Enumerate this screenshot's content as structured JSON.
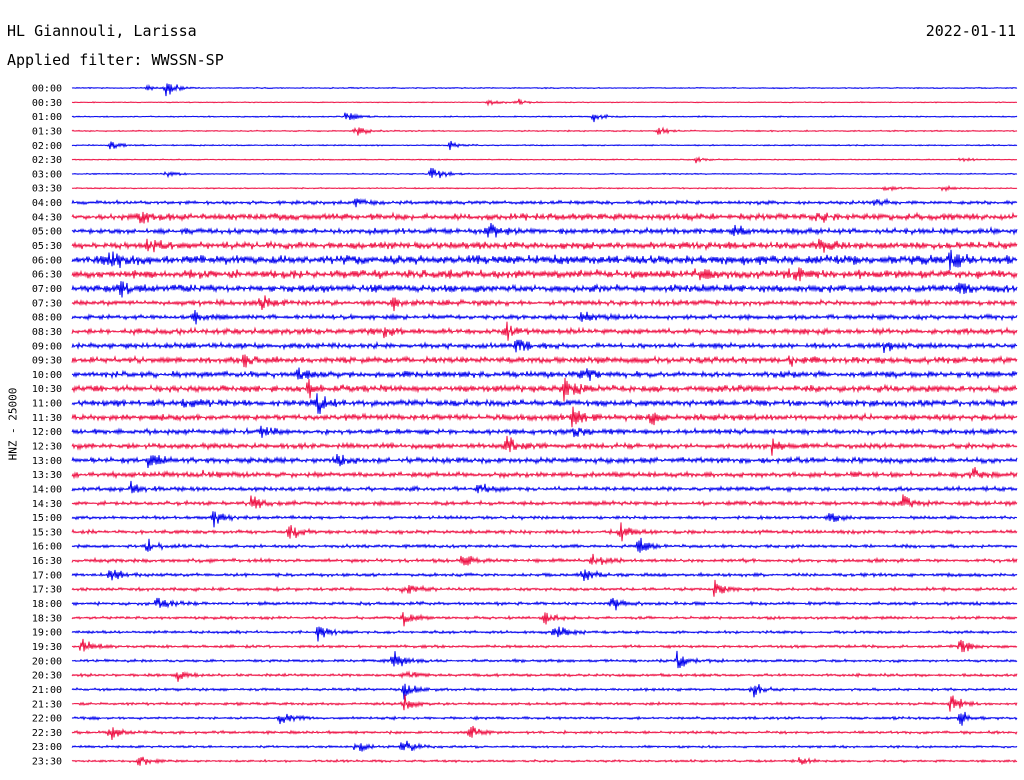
{
  "header": {
    "station": "HL Giannouli, Larissa",
    "filter": "Applied filter: WWSSN-SP",
    "date": "2022-01-11"
  },
  "chart_data": {
    "type": "helicorder",
    "station": "HL Giannouli, Larissa",
    "date": "2022-01-11",
    "filter": "WWSSN-SP",
    "ylabel": "HNZ - 25000",
    "colors": [
      "#0000ee",
      "#ee1144"
    ],
    "trace_minutes": 30,
    "traces": [
      {
        "time": "00:00",
        "noise": 0.12,
        "events": [
          0.4,
          0.08,
          0.78,
          0.1
        ]
      },
      {
        "time": "00:30",
        "noise": 0.1,
        "events": [
          0.32,
          0.44,
          0.4,
          0.47
        ]
      },
      {
        "time": "01:00",
        "noise": 0.14,
        "events": [
          0.55,
          0.29,
          0.6,
          0.55
        ]
      },
      {
        "time": "01:30",
        "noise": 0.14,
        "events": [
          0.6,
          0.3,
          0.36,
          0.62
        ]
      },
      {
        "time": "02:00",
        "noise": 0.14,
        "events": [
          0.5,
          0.04,
          0.38,
          0.4
        ]
      },
      {
        "time": "02:30",
        "noise": 0.12,
        "events": [
          0.3,
          0.66,
          0.25,
          0.94
        ]
      },
      {
        "time": "03:00",
        "noise": 0.13,
        "events": [
          1.0,
          0.38,
          0.3,
          0.1
        ]
      },
      {
        "time": "03:30",
        "noise": 0.14,
        "events": [
          0.3,
          0.86,
          0.35,
          0.92
        ]
      },
      {
        "time": "04:00",
        "noise": 0.4,
        "events": [
          0.35,
          0.3,
          0.4,
          0.85
        ]
      },
      {
        "time": "04:30",
        "noise": 0.7,
        "events": [
          0.75,
          0.07,
          0.8,
          0.79
        ]
      },
      {
        "time": "05:00",
        "noise": 0.6,
        "events": [
          1.0,
          0.44,
          0.7,
          0.7
        ]
      },
      {
        "time": "05:30",
        "noise": 0.75,
        "events": [
          1.0,
          0.79,
          0.8,
          0.08
        ]
      },
      {
        "time": "06:00",
        "noise": 1.0,
        "events": [
          1.0,
          0.04,
          1.0,
          0.93
        ]
      },
      {
        "time": "06:30",
        "noise": 0.9,
        "events": [
          0.9,
          0.66,
          0.8,
          0.76
        ]
      },
      {
        "time": "07:00",
        "noise": 0.8,
        "events": [
          1.0,
          0.05,
          0.8,
          0.94
        ]
      },
      {
        "time": "07:30",
        "noise": 0.55,
        "events": [
          0.7,
          0.2,
          0.6,
          0.34
        ]
      },
      {
        "time": "08:00",
        "noise": 0.5,
        "events": [
          0.6,
          0.13,
          0.6,
          0.54
        ]
      },
      {
        "time": "08:30",
        "noise": 0.6,
        "events": [
          1.0,
          0.46,
          0.7,
          0.33
        ]
      },
      {
        "time": "09:00",
        "noise": 0.55,
        "events": [
          0.9,
          0.47,
          0.7,
          0.86
        ]
      },
      {
        "time": "09:30",
        "noise": 0.7,
        "events": [
          0.8,
          0.18,
          0.7,
          0.76
        ]
      },
      {
        "time": "10:00",
        "noise": 0.65,
        "events": [
          0.8,
          0.24,
          0.9,
          0.54
        ]
      },
      {
        "time": "10:30",
        "noise": 0.75,
        "events": [
          1.0,
          0.25,
          1.0,
          0.52
        ]
      },
      {
        "time": "11:00",
        "noise": 0.7,
        "events": [
          1.0,
          0.26,
          0.9,
          0.12
        ]
      },
      {
        "time": "11:30",
        "noise": 0.65,
        "events": [
          1.0,
          0.53,
          0.9,
          0.61
        ]
      },
      {
        "time": "12:00",
        "noise": 0.55,
        "events": [
          1.0,
          0.53,
          0.7,
          0.2
        ]
      },
      {
        "time": "12:30",
        "noise": 0.55,
        "events": [
          1.0,
          0.46,
          0.7,
          0.74
        ]
      },
      {
        "time": "13:00",
        "noise": 0.6,
        "events": [
          0.8,
          0.08,
          0.7,
          0.28
        ]
      },
      {
        "time": "13:30",
        "noise": 0.55,
        "events": [
          0.7,
          0.14,
          0.7,
          0.95
        ]
      },
      {
        "time": "14:00",
        "noise": 0.45,
        "events": [
          0.8,
          0.06,
          0.7,
          0.43
        ]
      },
      {
        "time": "14:30",
        "noise": 0.45,
        "events": [
          0.8,
          0.19,
          0.9,
          0.88
        ]
      },
      {
        "time": "15:00",
        "noise": 0.35,
        "events": [
          0.9,
          0.15,
          0.7,
          0.8
        ]
      },
      {
        "time": "15:30",
        "noise": 0.4,
        "events": [
          0.9,
          0.23,
          0.9,
          0.58
        ]
      },
      {
        "time": "16:00",
        "noise": 0.35,
        "events": [
          1.0,
          0.6,
          0.8,
          0.08
        ]
      },
      {
        "time": "16:30",
        "noise": 0.4,
        "events": [
          0.9,
          0.41,
          0.8,
          0.55
        ]
      },
      {
        "time": "17:00",
        "noise": 0.35,
        "events": [
          0.9,
          0.04,
          0.8,
          0.54
        ]
      },
      {
        "time": "17:30",
        "noise": 0.35,
        "events": [
          1.0,
          0.35,
          0.8,
          0.68
        ]
      },
      {
        "time": "18:00",
        "noise": 0.35,
        "events": [
          0.8,
          0.09,
          0.8,
          0.57
        ]
      },
      {
        "time": "18:30",
        "noise": 0.3,
        "events": [
          0.8,
          0.35,
          0.6,
          0.5
        ]
      },
      {
        "time": "19:00",
        "noise": 0.3,
        "events": [
          0.8,
          0.26,
          0.9,
          0.51
        ]
      },
      {
        "time": "19:30",
        "noise": 0.3,
        "events": [
          0.8,
          0.01,
          0.8,
          0.94
        ]
      },
      {
        "time": "20:00",
        "noise": 0.3,
        "events": [
          1.0,
          0.34,
          1.0,
          0.64
        ]
      },
      {
        "time": "20:30",
        "noise": 0.3,
        "events": [
          0.7,
          0.11,
          0.7,
          0.35
        ]
      },
      {
        "time": "21:00",
        "noise": 0.28,
        "events": [
          1.0,
          0.35,
          0.9,
          0.72
        ]
      },
      {
        "time": "21:30",
        "noise": 0.3,
        "events": [
          1.0,
          0.35,
          1.0,
          0.93
        ]
      },
      {
        "time": "22:00",
        "noise": 0.28,
        "events": [
          0.8,
          0.22,
          0.8,
          0.94
        ]
      },
      {
        "time": "22:30",
        "noise": 0.3,
        "events": [
          0.9,
          0.04,
          0.8,
          0.42
        ]
      },
      {
        "time": "23:00",
        "noise": 0.25,
        "events": [
          1.0,
          0.35,
          0.7,
          0.3
        ]
      },
      {
        "time": "23:30",
        "noise": 0.25,
        "events": [
          0.6,
          0.07,
          0.5,
          0.77
        ]
      }
    ]
  }
}
